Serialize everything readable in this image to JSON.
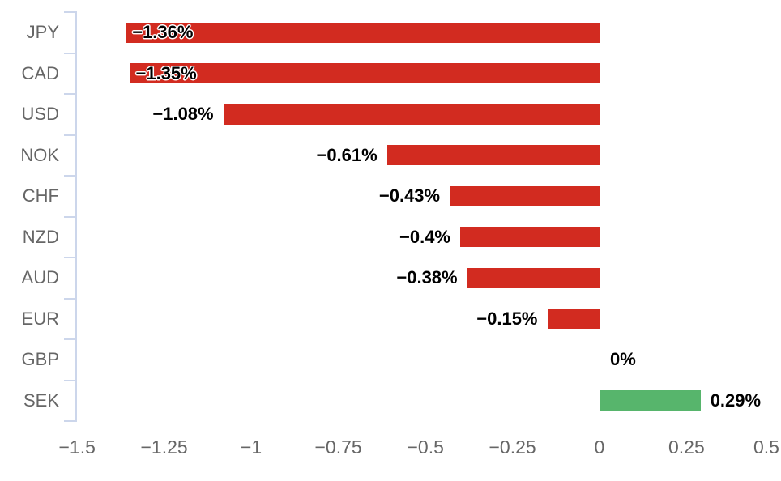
{
  "chart_data": {
    "type": "bar",
    "orientation": "horizontal",
    "title": "",
    "xlabel": "",
    "ylabel": "",
    "categories": [
      "JPY",
      "CAD",
      "USD",
      "NOK",
      "CHF",
      "NZD",
      "AUD",
      "EUR",
      "GBP",
      "SEK"
    ],
    "values": [
      -1.36,
      -1.35,
      -1.08,
      -0.61,
      -0.43,
      -0.4,
      -0.38,
      -0.15,
      0,
      0.29
    ],
    "value_labels": [
      "−1.36%",
      "−1.35%",
      "−1.08%",
      "−0.61%",
      "−0.43%",
      "−0.4%",
      "−0.38%",
      "−0.15%",
      "0%",
      "0.29%"
    ],
    "xlim": [
      -1.5,
      0.5
    ],
    "x_ticks": [
      -1.5,
      -1.25,
      -1,
      -0.75,
      -0.5,
      -0.25,
      0,
      0.25,
      0.5
    ],
    "x_tick_labels": [
      "−1.5",
      "−1.25",
      "−1",
      "−0.75",
      "−0.5",
      "−0.25",
      "0",
      "0.25",
      "0.5"
    ],
    "grid": false,
    "legend": "none",
    "colors": {
      "negative_bar": "#d22b20",
      "positive_bar": "#57b56c",
      "axis_line": "#ccd6eb",
      "tick_text": "#666666",
      "value_label_text": "#000000",
      "background": "#ffffff"
    }
  }
}
